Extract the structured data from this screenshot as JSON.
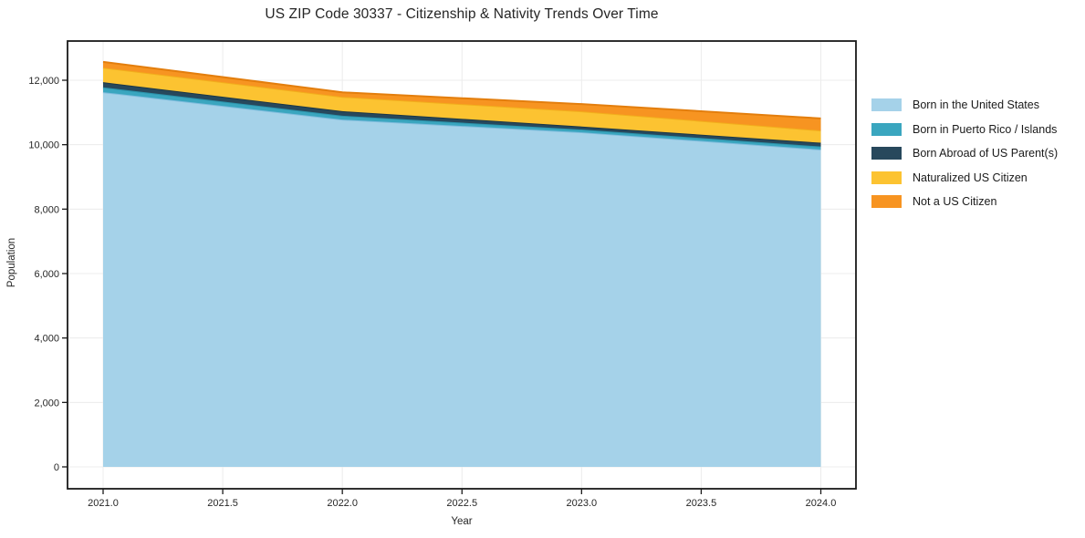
{
  "title": "US ZIP Code 30337 - Citizenship & Nativity Trends Over Time",
  "chart_data": {
    "type": "area",
    "stacked": true,
    "title": "US ZIP Code 30337 - Citizenship & Nativity Trends Over Time",
    "xlabel": "Year",
    "ylabel": "Population",
    "x": [
      2021,
      2022,
      2023,
      2024
    ],
    "xlim": [
      2021,
      2024
    ],
    "ylim": [
      0,
      12000
    ],
    "grid": true,
    "legend_position": "right",
    "series": [
      {
        "name": "Born in the United States",
        "color": "#A5D2E9",
        "edge": "#7FBCDD",
        "values": [
          11630,
          10780,
          10385,
          9850
        ]
      },
      {
        "name": "Born in Puerto Rico / Islands",
        "color": "#3AA6BF",
        "edge": "#2B93AB",
        "values": [
          150,
          120,
          85,
          95
        ]
      },
      {
        "name": "Born Abroad of US Parent(s)",
        "color": "#27485C",
        "edge": "#1B3747",
        "values": [
          160,
          140,
          95,
          115
        ]
      },
      {
        "name": "Naturalized US Citizen",
        "color": "#FCC331",
        "edge": "#F2AE1C",
        "values": [
          450,
          445,
          470,
          380
        ]
      },
      {
        "name": "Not a US Citizen",
        "color": "#F79421",
        "edge": "#E37E0D",
        "values": [
          180,
          140,
          225,
          375
        ]
      }
    ],
    "xticks": [
      {
        "v": 2021.0,
        "label": "2021.0"
      },
      {
        "v": 2021.5,
        "label": "2021.5"
      },
      {
        "v": 2022.0,
        "label": "2022.0"
      },
      {
        "v": 2022.5,
        "label": "2022.5"
      },
      {
        "v": 2023.0,
        "label": "2023.0"
      },
      {
        "v": 2023.5,
        "label": "2023.5"
      },
      {
        "v": 2024.0,
        "label": "2024.0"
      }
    ],
    "yticks": [
      {
        "v": 0,
        "label": "0"
      },
      {
        "v": 2000,
        "label": "2,000"
      },
      {
        "v": 4000,
        "label": "4,000"
      },
      {
        "v": 6000,
        "label": "6,000"
      },
      {
        "v": 8000,
        "label": "8,000"
      },
      {
        "v": 10000,
        "label": "10,000"
      },
      {
        "v": 12000,
        "label": "12,000"
      }
    ]
  },
  "colors": {
    "spine": "#1a1a1a",
    "grid": "#ececec",
    "tick_text": "#262626",
    "background": "#ffffff"
  }
}
